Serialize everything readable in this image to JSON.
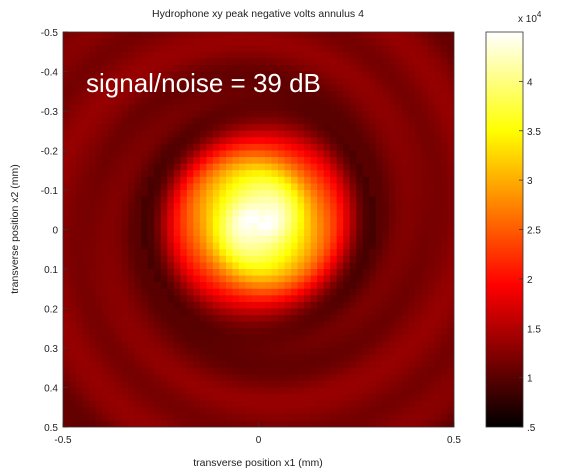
{
  "chart_data": [
    {
      "type": "heatmap",
      "title": "Hydrophone xy peak negative volts annulus 4",
      "xlabel": "transverse position x1  (mm)",
      "ylabel": "transverse position x2  (mm)",
      "xlim": [
        -0.5,
        0.5
      ],
      "ylim": [
        -0.5,
        0.5
      ],
      "y_reversed": true,
      "x_ticks": [
        {
          "value": -0.5,
          "label": "-0.5"
        },
        {
          "value": 0,
          "label": "0"
        },
        {
          "value": 0.5,
          "label": "0.5"
        }
      ],
      "y_ticks": [
        {
          "value": -0.5,
          "label": "-0.5"
        },
        {
          "value": -0.4,
          "label": "-0.4"
        },
        {
          "value": -0.3,
          "label": "-0.3"
        },
        {
          "value": -0.2,
          "label": "-0.2"
        },
        {
          "value": -0.1,
          "label": "-0.1"
        },
        {
          "value": 0,
          "label": "0"
        },
        {
          "value": 0.1,
          "label": "0.1"
        },
        {
          "value": 0.2,
          "label": "0.2"
        },
        {
          "value": 0.3,
          "label": "0.3"
        },
        {
          "value": 0.4,
          "label": "0.4"
        },
        {
          "value": 0.5,
          "label": "0.5"
        }
      ],
      "annotation": "signal/noise = 39 dB",
      "colormap": "hot",
      "field_model": {
        "center": [
          0.0,
          -0.02
        ],
        "peak": 45000,
        "floor": 8500,
        "core_sigma": 0.14,
        "dark_ring_radius": 0.27,
        "dark_ring_depth": 3500,
        "outer_level": 12500
      },
      "colorbar": {
        "range": [
          5000,
          45000
        ],
        "ticks": [
          {
            "value": 5000,
            "label": ".5"
          },
          {
            "value": 10000,
            "label": "1"
          },
          {
            "value": 15000,
            "label": "1.5"
          },
          {
            "value": 20000,
            "label": "2"
          },
          {
            "value": 25000,
            "label": "2.5"
          },
          {
            "value": 30000,
            "label": "3"
          },
          {
            "value": 35000,
            "label": "3.5"
          },
          {
            "value": 40000,
            "label": "4"
          }
        ],
        "exponent_label": "x 10",
        "exponent": "4"
      }
    }
  ]
}
